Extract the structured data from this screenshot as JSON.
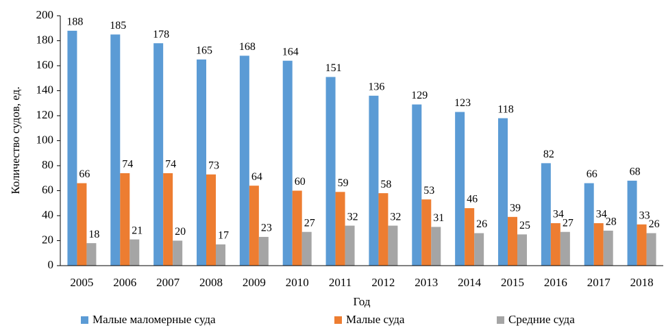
{
  "chart_data": {
    "type": "bar",
    "y_label": "Количество судов, ед.",
    "x_label": "Год",
    "categories": [
      "2005",
      "2006",
      "2007",
      "2008",
      "2009",
      "2010",
      "2011",
      "2012",
      "2013",
      "2014",
      "2015",
      "2016",
      "2017",
      "2018"
    ],
    "series": [
      {
        "name": "Малые маломерные суда",
        "color": "#5b9bd5",
        "values": [
          188,
          185,
          178,
          165,
          168,
          164,
          151,
          136,
          129,
          123,
          118,
          82,
          66,
          68
        ]
      },
      {
        "name": "Малые суда",
        "color": "#ed7d31",
        "values": [
          66,
          74,
          74,
          73,
          64,
          60,
          59,
          58,
          53,
          46,
          39,
          34,
          34,
          33
        ]
      },
      {
        "name": "Средние суда",
        "color": "#a5a5a5",
        "values": [
          18,
          21,
          20,
          17,
          23,
          27,
          32,
          32,
          31,
          26,
          25,
          27,
          28,
          26
        ]
      }
    ],
    "ylim": [
      0,
      200
    ],
    "yticks": [
      0,
      20,
      40,
      60,
      80,
      100,
      120,
      140,
      160,
      180,
      200
    ],
    "grid": false,
    "legend": "bottom"
  }
}
